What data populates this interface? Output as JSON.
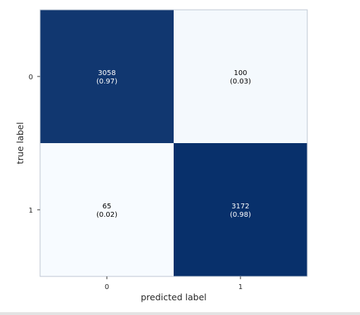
{
  "chart_data": {
    "type": "heatmap",
    "title": "",
    "xlabel": "predicted label",
    "ylabel": "true label",
    "x_categories": [
      "0",
      "1"
    ],
    "y_categories": [
      "0",
      "1"
    ],
    "values": [
      [
        3058,
        100
      ],
      [
        65,
        3172
      ]
    ],
    "normalized": [
      [
        0.97,
        0.03
      ],
      [
        0.02,
        0.98
      ]
    ],
    "cell_labels": [
      [
        "3058\n(0.97)",
        "100\n(0.03)"
      ],
      [
        "65\n(0.02)",
        "3172\n(0.98)"
      ]
    ],
    "colormap": "Blues",
    "colors": {
      "low": "#f7fbff",
      "high": "#08306b",
      "text_on_dark": "#ffffff",
      "text_on_light": "#000000",
      "frame": "#bcc6d2"
    },
    "grid": false,
    "colorbar": false,
    "legend": "none"
  }
}
